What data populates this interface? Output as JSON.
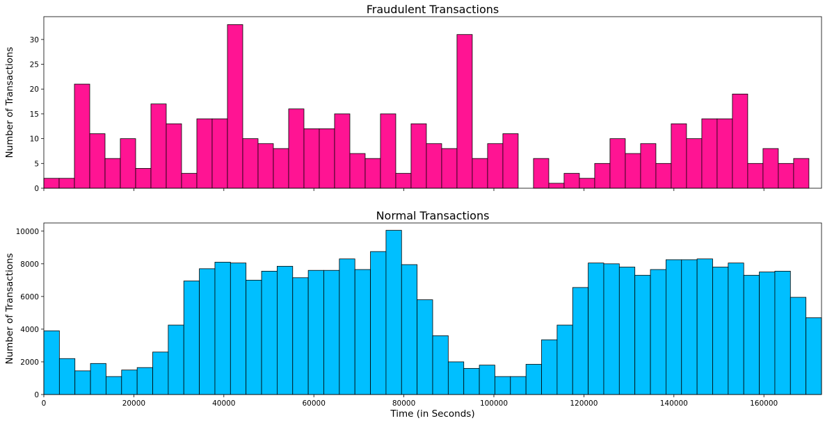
{
  "chart_data": [
    {
      "type": "bar",
      "title": "Fraudulent Transactions",
      "xlabel": "",
      "ylabel": "Number of Transactions",
      "xlim": [
        0,
        172800
      ],
      "ylim": [
        0,
        34.6
      ],
      "yticks": [
        0,
        5,
        10,
        15,
        20,
        25,
        30
      ],
      "xticks": [
        0,
        20000,
        40000,
        60000,
        80000,
        100000,
        120000,
        140000,
        160000
      ],
      "show_xtick_labels": false,
      "bin_width": 3400,
      "color": "#ff1493",
      "values": [
        2,
        2,
        21,
        11,
        6,
        10,
        4,
        17,
        13,
        3,
        14,
        14,
        33,
        10,
        9,
        8,
        16,
        12,
        12,
        15,
        7,
        6,
        15,
        3,
        13,
        9,
        8,
        31,
        6,
        9,
        11,
        0,
        6,
        1,
        3,
        2,
        5,
        10,
        7,
        9,
        5,
        13,
        10,
        14,
        14,
        19,
        5,
        8,
        5,
        6
      ]
    },
    {
      "type": "bar",
      "title": "Normal Transactions",
      "xlabel": "Time (in Seconds)",
      "ylabel": "Number of Transactions",
      "xlim": [
        0,
        172800
      ],
      "ylim": [
        0,
        10500
      ],
      "yticks": [
        0,
        2000,
        4000,
        6000,
        8000,
        10000
      ],
      "xticks": [
        0,
        20000,
        40000,
        60000,
        80000,
        100000,
        120000,
        140000,
        160000
      ],
      "show_xtick_labels": true,
      "bin_width": 3456,
      "color": "#00bfff",
      "values": [
        3900,
        2200,
        1450,
        1900,
        1100,
        1500,
        1650,
        2600,
        4250,
        6950,
        7700,
        8100,
        8050,
        7000,
        7550,
        7850,
        7150,
        7600,
        7600,
        8300,
        7650,
        8750,
        10050,
        7950,
        5800,
        3600,
        2000,
        1600,
        1800,
        1100,
        1100,
        1850,
        3350,
        4250,
        6550,
        8050,
        8000,
        7800,
        7300,
        7650,
        8250,
        8250,
        8300,
        7800,
        8050,
        7300,
        7500,
        7550,
        5950,
        4700
      ]
    }
  ]
}
